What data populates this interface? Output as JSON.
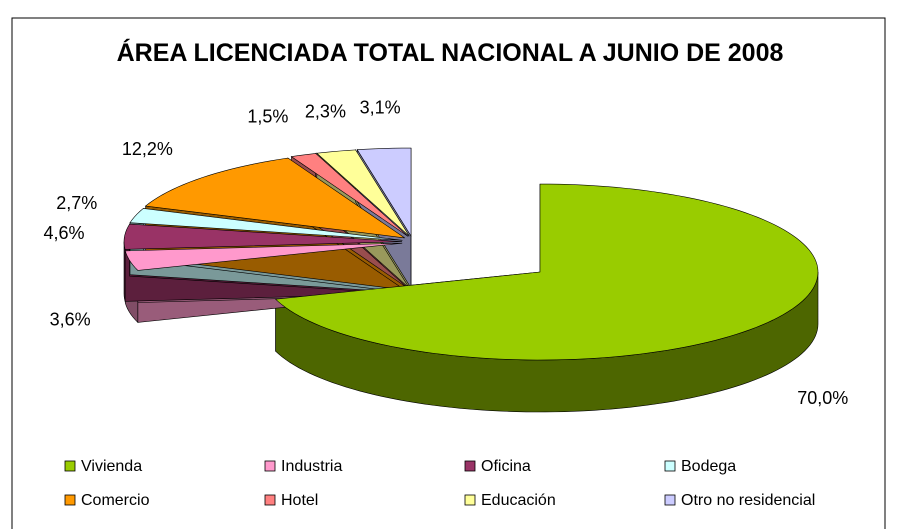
{
  "chart_data": {
    "type": "pie",
    "title": "ÁREA LICENCIADA TOTAL NACIONAL A JUNIO DE 2008",
    "categories": [
      "Vivienda",
      "Industria",
      "Oficina",
      "Bodega",
      "Comercio",
      "Hotel",
      "Educación",
      "Otro no residencial"
    ],
    "values": [
      70.0,
      3.6,
      4.6,
      2.7,
      12.2,
      1.5,
      2.3,
      3.1
    ],
    "value_labels": [
      "70,0%",
      "3,6%",
      "4,6%",
      "2,7%",
      "12,2%",
      "1,5%",
      "2,3%",
      "3,1%"
    ],
    "colors": [
      "#99cc00",
      "#ff99cc",
      "#993366",
      "#ccffff",
      "#ff9900",
      "#ff8080",
      "#ffff99",
      "#ccccff"
    ],
    "legend": "bottom"
  }
}
